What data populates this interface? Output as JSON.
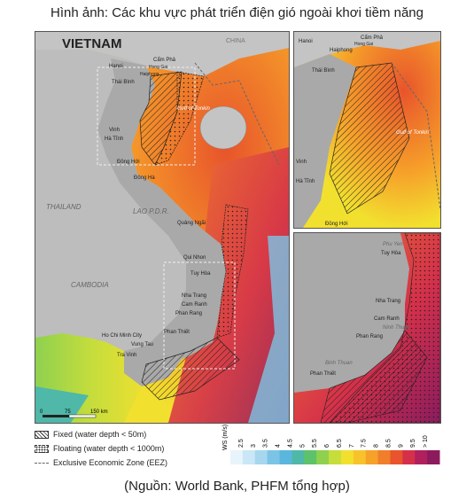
{
  "title": "Hình ảnh: Các khu vực phát triển điện gió ngoài khơi tiềm năng",
  "source": "(Nguồn: World Bank, PHFM tổng hợp)",
  "main_map": {
    "heading": "VIETNAM",
    "countries": {
      "china": "CHINA",
      "thailand": "THAILAND",
      "laos": "LAO P.D.R.",
      "cambodia": "CAMBODIA"
    },
    "gulf": "Gulf of Tonkin",
    "places": {
      "hanoi": "Hanoi",
      "cam_pha": "Cẩm Phả",
      "hong_gai": "Hong Gai",
      "haiphong": "Haiphong",
      "thai_binh": "Thái Bình",
      "vinh": "Vinh",
      "ha_tinh": "Hà Tĩnh",
      "dong_hoi": "Đồng Hới",
      "dong_ha": "Đông Hà",
      "quang_ngai": "Quảng Ngãi",
      "qui_nhon": "Qui Nhon",
      "tuy_hoa": "Tuy Hòa",
      "nha_trang": "Nha Trang",
      "cam_ranh": "Cam Ranh",
      "phan_rang": "Phan Rang",
      "phan_thiet": "Phan Thiết",
      "hcmc": "Ho Chi Minh City",
      "vung_tau": "Vung Tau",
      "tra_vinh": "Tra Vinh"
    },
    "scale": {
      "t0": "0",
      "t1": "75",
      "t2": "150 km"
    }
  },
  "inset_north": {
    "places": {
      "hanoi": "Hanoi",
      "cam_pha": "Cẩm Phả",
      "hong_gai": "Hong Gai",
      "haiphong": "Haiphong",
      "thai_binh": "Thái Bình",
      "vinh": "Vinh",
      "ha_tinh": "Hà Tĩnh",
      "dong_hoi": "Đồng Hới"
    },
    "gulf": "Gulf of Tonkin"
  },
  "inset_south": {
    "places": {
      "tuy_hoa": "Tuy Hòa",
      "phu_yen": "Phu Yen",
      "nha_trang": "Nha Trang",
      "cam_ranh": "Cam Ranh",
      "ninh_thuan": "Ninh Thuan",
      "phan_rang": "Phan Rang",
      "binh_thuan": "Binh Thuan",
      "phan_thiet": "Phan Thiết"
    }
  },
  "legend": {
    "fixed": "Fixed (water depth < 50m)",
    "floating": "Floating (water depth < 1000m)",
    "eez": "Exclusive Economic Zone (EEZ)"
  },
  "wind_scale": {
    "unit_label": "WS (m/s)",
    "ticks": [
      "2.5",
      "3",
      "3.5",
      "4",
      "4.5",
      "5",
      "5.5",
      "6",
      "6.5",
      "7",
      "7.5",
      "8",
      "8.5",
      "9",
      "9.5",
      "> 10"
    ],
    "colors": [
      "#e8f4fb",
      "#c9e7f6",
      "#a6d7ef",
      "#7cc4e5",
      "#5bb6de",
      "#4fb8a8",
      "#5cc36b",
      "#8fd14f",
      "#c6dd3c",
      "#f2e02f",
      "#f8c32a",
      "#f6a12a",
      "#f07e2b",
      "#e8542b",
      "#d5304a",
      "#b0205d",
      "#8c1b5e"
    ]
  }
}
